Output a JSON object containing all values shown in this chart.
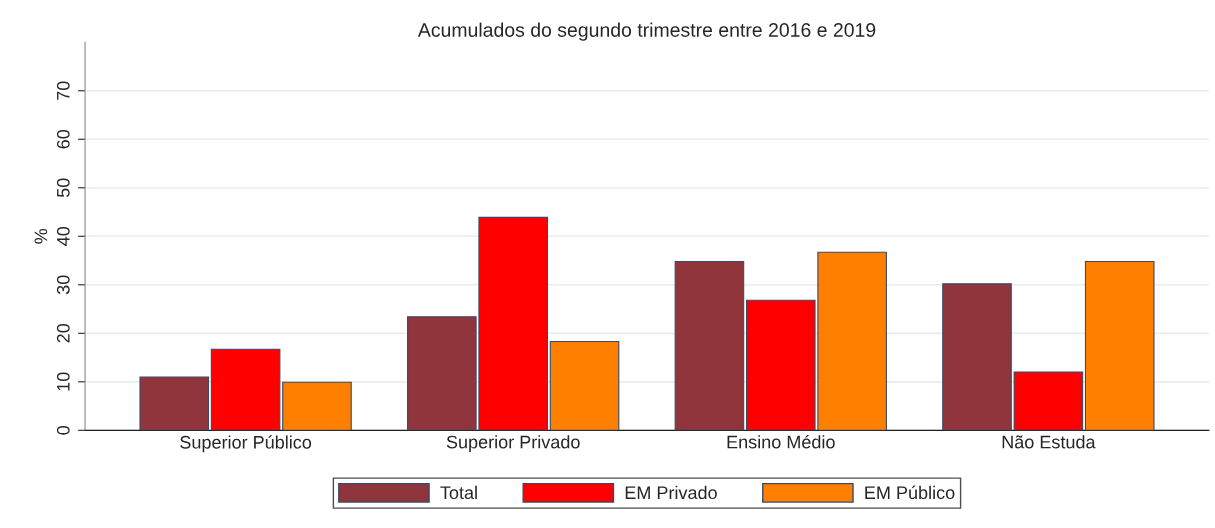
{
  "chart_data": {
    "type": "bar",
    "title": "Acumulados do segundo trimestre entre 2016 e 2019",
    "ylabel": "%",
    "categories": [
      "Superior Público",
      "Superior Privado",
      "Ensino Médio",
      "Não Estuda"
    ],
    "series": [
      {
        "name": "Total",
        "color": "#90353b",
        "values": [
          11.0,
          23.4,
          34.8,
          30.2
        ]
      },
      {
        "name": "EM Privado",
        "color": "#ff0000",
        "values": [
          16.7,
          43.9,
          26.8,
          12.0
        ]
      },
      {
        "name": "EM Público",
        "color": "#ff7f00",
        "values": [
          9.9,
          18.3,
          36.7,
          34.8
        ]
      }
    ],
    "ylim": [
      0,
      80
    ],
    "yticks": [
      0,
      10,
      20,
      30,
      40,
      50,
      60,
      70
    ],
    "grid": "y",
    "legend": "bottom"
  }
}
